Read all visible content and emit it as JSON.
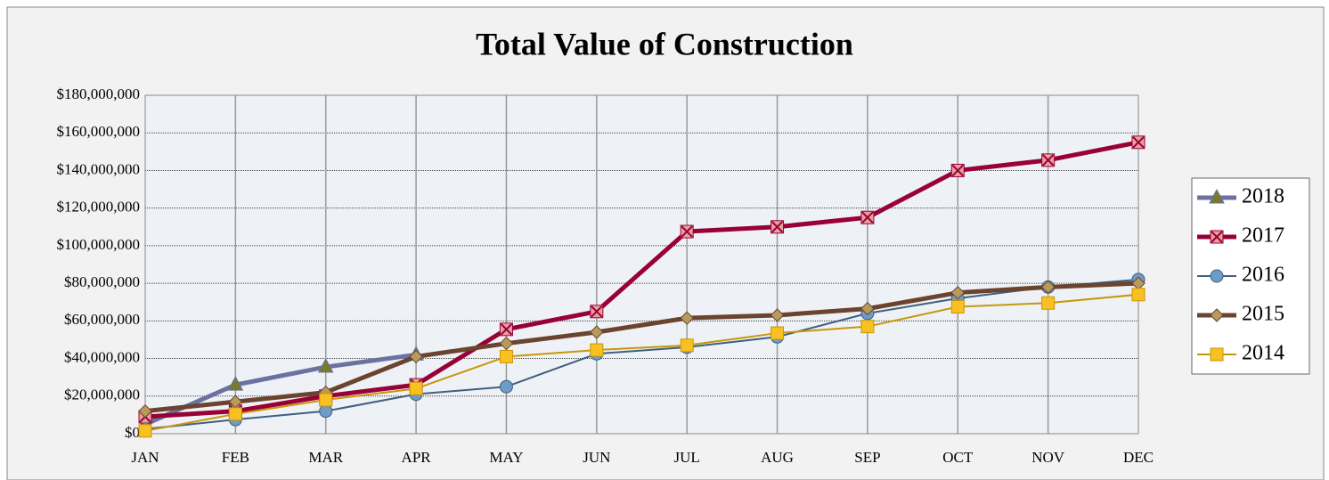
{
  "chart_data": {
    "type": "line",
    "title": "Total Value of Construction",
    "categories": [
      "JAN",
      "FEB",
      "MAR",
      "APR",
      "MAY",
      "JUN",
      "JUL",
      "AUG",
      "SEP",
      "OCT",
      "NOV",
      "DEC"
    ],
    "series": [
      {
        "name": "2018",
        "color": "#6b72a0",
        "marker": "triangle",
        "marker_color": "#7a7a2a",
        "values": [
          5000000,
          26000000,
          35500000,
          42000000,
          null,
          null,
          null,
          null,
          null,
          null,
          null,
          null
        ]
      },
      {
        "name": "2017",
        "color": "#990036",
        "marker": "x-square",
        "marker_color": "#e8a0a0",
        "values": [
          9000000,
          12000000,
          20000000,
          26000000,
          55500000,
          65000000,
          107500000,
          110000000,
          115000000,
          140000000,
          145500000,
          155000000
        ]
      },
      {
        "name": "2016",
        "color": "#3e5f80",
        "marker": "circle",
        "marker_color": "#6f9cc6",
        "values": [
          2500000,
          7500000,
          12000000,
          21000000,
          25000000,
          42500000,
          46000000,
          51500000,
          64000000,
          72000000,
          78000000,
          82000000
        ]
      },
      {
        "name": "2015",
        "color": "#6b4430",
        "marker": "diamond",
        "marker_color": "#b89a5a",
        "values": [
          12000000,
          17000000,
          22000000,
          41000000,
          48000000,
          54000000,
          61500000,
          63000000,
          66500000,
          75000000,
          78000000,
          80000000
        ]
      },
      {
        "name": "2014",
        "color": "#c8960a",
        "marker": "square",
        "marker_color": "#f8c020",
        "values": [
          1500000,
          10500000,
          18000000,
          24000000,
          41000000,
          44500000,
          47000000,
          53500000,
          57000000,
          67500000,
          69500000,
          74000000
        ]
      }
    ],
    "ylim": [
      0,
      180000000
    ],
    "yticks": [
      {
        "value": 0,
        "label": "$0"
      },
      {
        "value": 20000000,
        "label": "$20,000,000"
      },
      {
        "value": 40000000,
        "label": "$40,000,000"
      },
      {
        "value": 60000000,
        "label": "$60,000,000"
      },
      {
        "value": 80000000,
        "label": "$80,000,000"
      },
      {
        "value": 100000000,
        "label": "$100,000,000"
      },
      {
        "value": 120000000,
        "label": "$120,000,000"
      },
      {
        "value": 140000000,
        "label": "$140,000,000"
      },
      {
        "value": 160000000,
        "label": "$160,000,000"
      },
      {
        "value": 180000000,
        "label": "$180,000,000"
      }
    ],
    "grid": true,
    "legend": "right"
  }
}
